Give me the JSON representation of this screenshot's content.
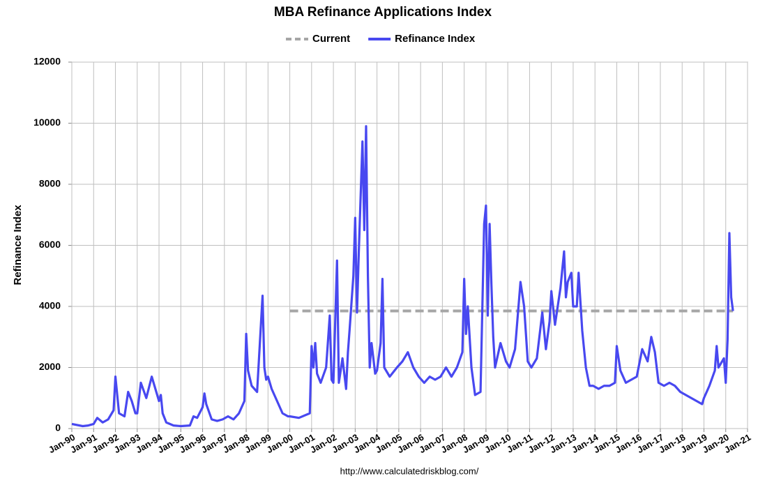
{
  "chart_data": {
    "type": "line",
    "title": "MBA Refinance Applications Index",
    "y_label": "Refinance Index",
    "source": "http://www.calculatedriskblog.com/",
    "x": [
      "Jan-90",
      "Jul-90",
      "Oct-90",
      "Jan-91",
      "Mar-91",
      "Jun-91",
      "Sep-91",
      "Dec-91",
      "Jan-92",
      "Mar-92",
      "Jun-92",
      "Aug-92",
      "Oct-92",
      "Dec-92",
      "Jan-93",
      "Mar-93",
      "Jun-93",
      "Sep-93",
      "Oct-93",
      "Dec-93",
      "Jan-94",
      "Feb-94",
      "Mar-94",
      "May-94",
      "Sep-94",
      "Jan-95",
      "Jun-95",
      "Aug-95",
      "Oct-95",
      "Jan-96",
      "Feb-96",
      "Mar-96",
      "Jun-96",
      "Sep-96",
      "Dec-96",
      "Mar-97",
      "Jun-97",
      "Sep-97",
      "Dec-97",
      "Jan-98",
      "Feb-98",
      "Apr-98",
      "Jul-98",
      "Oct-98",
      "Nov-98",
      "Dec-98",
      "Jan-99",
      "Mar-99",
      "Jun-99",
      "Sep-99",
      "Dec-99",
      "Jan-00",
      "Jun-00",
      "Dec-00",
      "Jan-01",
      "Feb-01",
      "Mar-01",
      "Apr-01",
      "Jun-01",
      "Sep-01",
      "Nov-01",
      "Dec-01",
      "Jan-02",
      "Mar-02",
      "Apr-02",
      "Jun-02",
      "Aug-02",
      "Sep-02",
      "Oct-02",
      "Dec-02",
      "Jan-03",
      "Feb-03",
      "Mar-03",
      "May-03",
      "Jun-03",
      "Jul-03",
      "Aug-03",
      "Sep-03",
      "Oct-03",
      "Dec-03",
      "Jan-04",
      "Mar-04",
      "Apr-04",
      "May-04",
      "Aug-04",
      "Dec-04",
      "Mar-05",
      "Jun-05",
      "Sep-05",
      "Dec-05",
      "Mar-06",
      "Jun-06",
      "Sep-06",
      "Dec-06",
      "Mar-07",
      "Jun-07",
      "Sep-07",
      "Dec-07",
      "Jan-08",
      "Feb-08",
      "Mar-08",
      "May-08",
      "Jul-08",
      "Oct-08",
      "Dec-08",
      "Jan-09",
      "Feb-09",
      "Mar-09",
      "Apr-09",
      "May-09",
      "Jun-09",
      "Sep-09",
      "Dec-09",
      "Feb-10",
      "May-10",
      "Aug-10",
      "Oct-10",
      "Dec-10",
      "Feb-11",
      "May-11",
      "Aug-11",
      "Oct-11",
      "Dec-11",
      "Jan-12",
      "Mar-12",
      "Jun-12",
      "Aug-12",
      "Sep-12",
      "Oct-12",
      "Dec-12",
      "Jan-13",
      "Mar-13",
      "Apr-13",
      "Jun-13",
      "Aug-13",
      "Oct-13",
      "Dec-13",
      "Mar-14",
      "Jun-14",
      "Sep-14",
      "Dec-14",
      "Jan-15",
      "Mar-15",
      "Jun-15",
      "Sep-15",
      "Dec-15",
      "Mar-16",
      "Jun-16",
      "Aug-16",
      "Oct-16",
      "Dec-16",
      "Mar-17",
      "Jun-17",
      "Sep-17",
      "Dec-17",
      "Mar-18",
      "Jun-18",
      "Sep-18",
      "Dec-18",
      "Jan-19",
      "Apr-19",
      "Jul-19",
      "Aug-19",
      "Sep-19",
      "Dec-19",
      "Jan-20",
      "Feb-20",
      "Mar-20",
      "Apr-20",
      "May-20"
    ],
    "series": [
      {
        "name": "Current",
        "color": "#a6a6a6",
        "dashed": true,
        "x": [
          "Jan-00",
          "May-20"
        ],
        "values": [
          3850,
          3850
        ]
      },
      {
        "name": "Refinance Index",
        "color": "#4848f0",
        "values": [
          150,
          80,
          100,
          150,
          350,
          200,
          300,
          600,
          1700,
          500,
          400,
          1200,
          900,
          500,
          500,
          1500,
          1000,
          1700,
          1500,
          1100,
          900,
          1100,
          500,
          200,
          100,
          80,
          100,
          400,
          350,
          700,
          1150,
          800,
          300,
          250,
          300,
          400,
          300,
          500,
          900,
          3100,
          1900,
          1400,
          1200,
          4350,
          2000,
          1600,
          1700,
          1300,
          900,
          500,
          400,
          400,
          350,
          500,
          2700,
          2000,
          2800,
          1800,
          1500,
          2000,
          3700,
          1600,
          1500,
          5500,
          1500,
          2300,
          1300,
          2500,
          3300,
          5000,
          6900,
          3800,
          5800,
          9400,
          6500,
          9900,
          5000,
          2000,
          2800,
          1800,
          1900,
          2800,
          4900,
          2000,
          1700,
          2000,
          2200,
          2500,
          2000,
          1700,
          1500,
          1700,
          1600,
          1700,
          2000,
          1700,
          2000,
          2500,
          4900,
          3100,
          4000,
          2000,
          1100,
          1200,
          6700,
          7300,
          3700,
          6700,
          4700,
          3000,
          2000,
          2800,
          2200,
          2000,
          2600,
          4800,
          4000,
          2200,
          2000,
          2300,
          3800,
          2600,
          3500,
          4500,
          3400,
          4600,
          5800,
          4300,
          4800,
          5100,
          4000,
          4000,
          5100,
          3200,
          2000,
          1400,
          1400,
          1300,
          1400,
          1400,
          1500,
          2700,
          1900,
          1500,
          1600,
          1700,
          2600,
          2200,
          3000,
          2500,
          1500,
          1400,
          1500,
          1400,
          1200,
          1100,
          1000,
          900,
          800,
          1000,
          1400,
          1900,
          2700,
          2000,
          2300,
          1500,
          2900,
          6400,
          4300,
          3850
        ]
      }
    ],
    "xlim": [
      "Jan-90",
      "Jan-21"
    ],
    "xticks": [
      "Jan-90",
      "Jan-91",
      "Jan-92",
      "Jan-93",
      "Jan-94",
      "Jan-95",
      "Jan-96",
      "Jan-97",
      "Jan-98",
      "Jan-99",
      "Jan-00",
      "Jan-01",
      "Jan-02",
      "Jan-03",
      "Jan-04",
      "Jan-05",
      "Jan-06",
      "Jan-07",
      "Jan-08",
      "Jan-09",
      "Jan-10",
      "Jan-11",
      "Jan-12",
      "Jan-13",
      "Jan-14",
      "Jan-15",
      "Jan-16",
      "Jan-17",
      "Jan-18",
      "Jan-19",
      "Jan-20",
      "Jan-21"
    ],
    "ylim": [
      0,
      12000
    ],
    "yticks": [
      0,
      2000,
      4000,
      6000,
      8000,
      10000,
      12000
    ],
    "grid": true,
    "legend": "top"
  }
}
